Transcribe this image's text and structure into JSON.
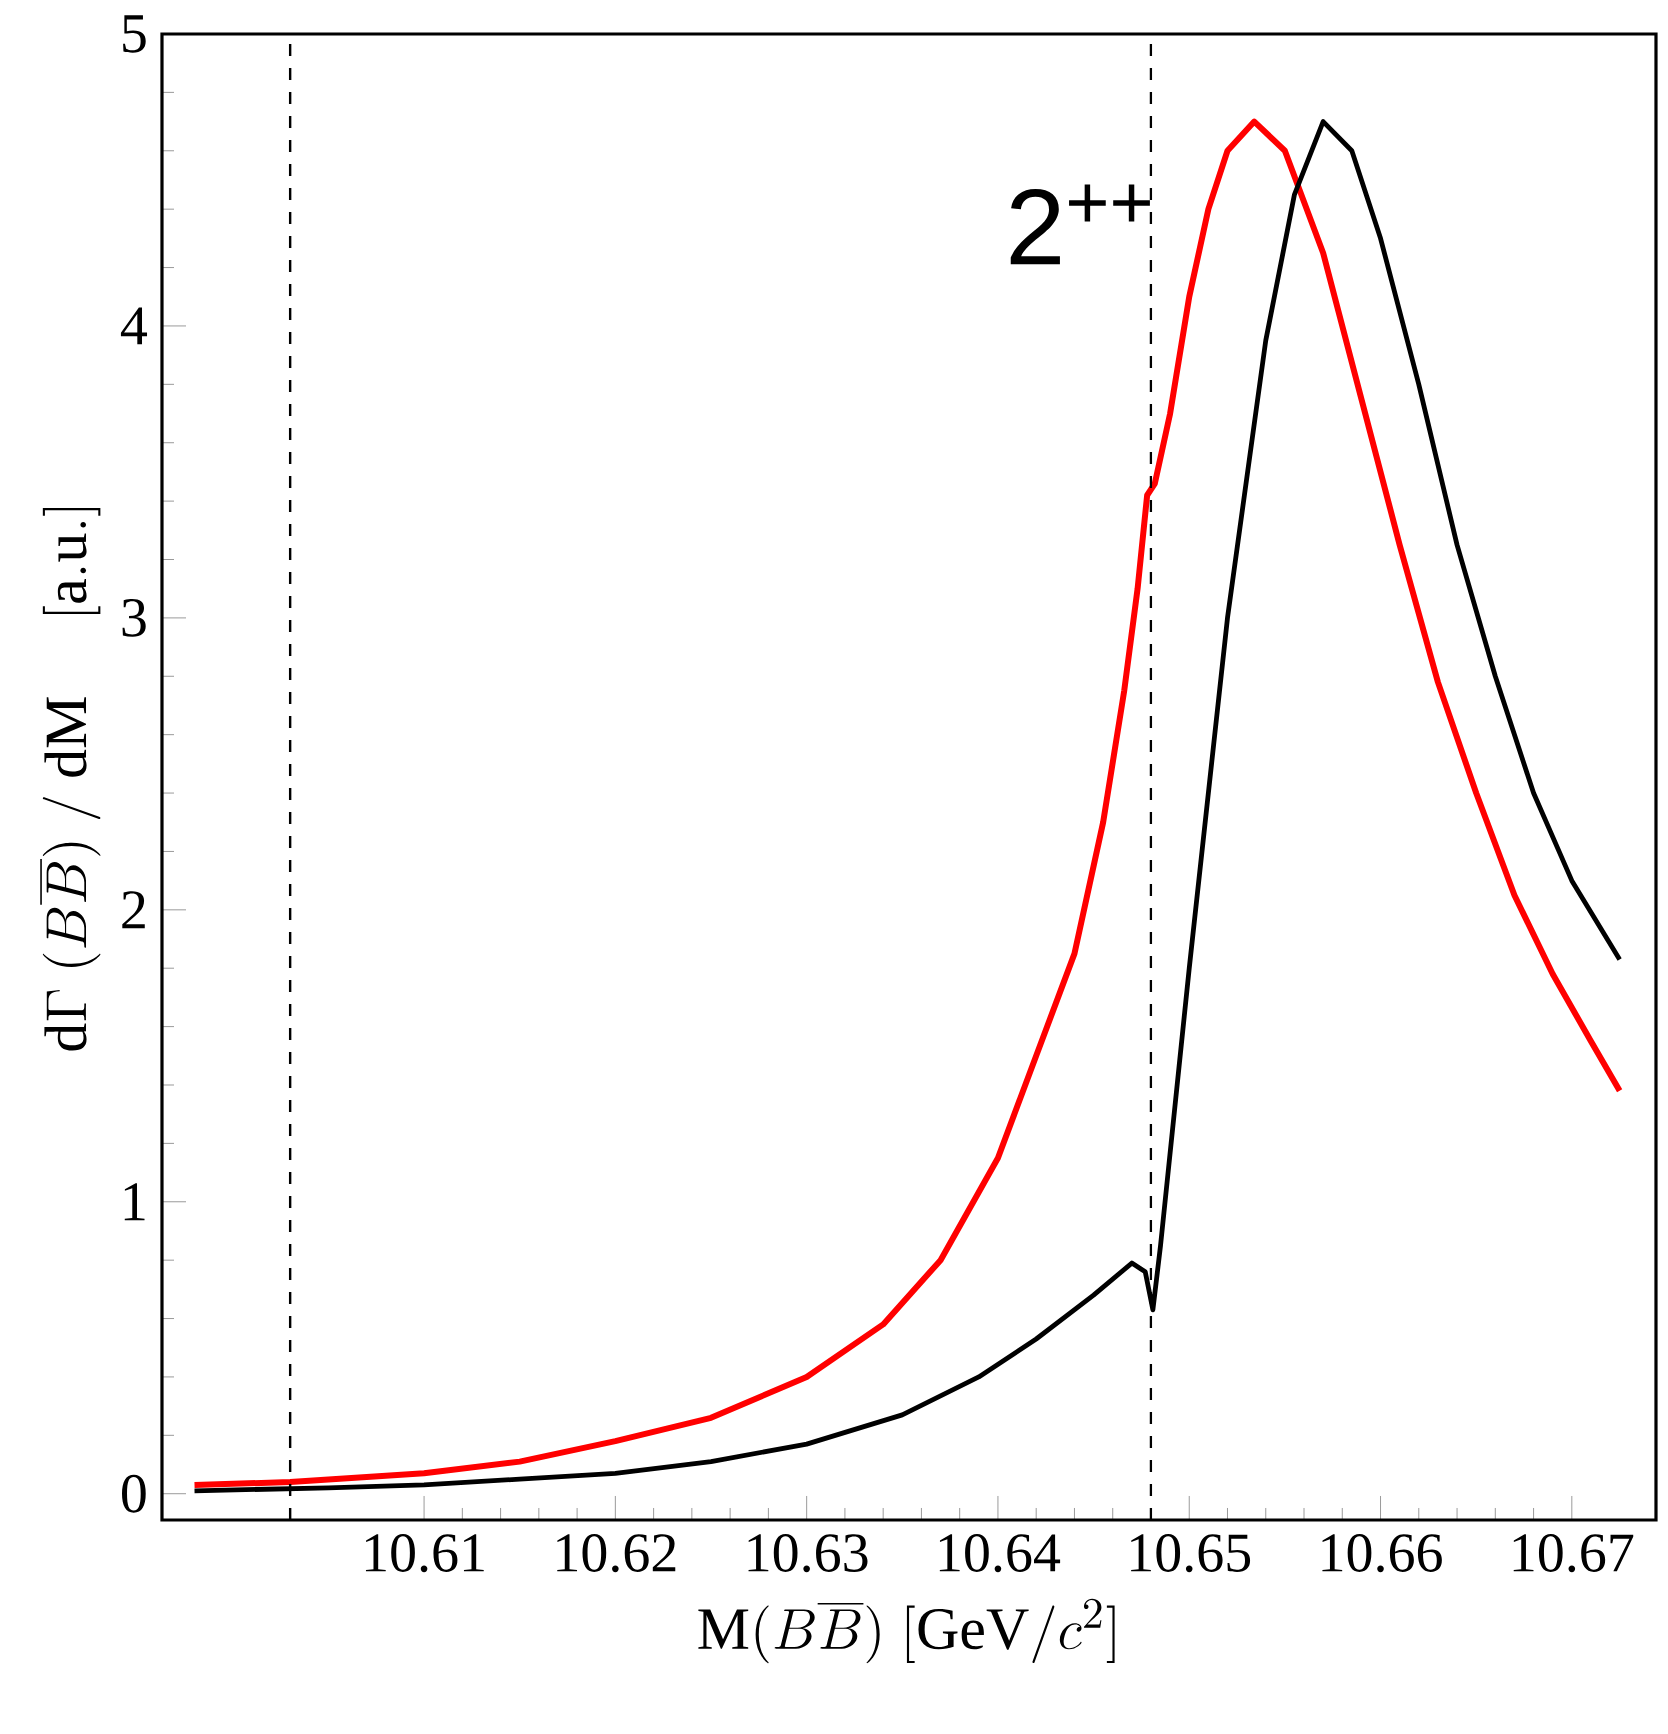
{
  "chart_data": {
    "type": "line",
    "xlabel": "\\mathrm{M}(B\\overline{B})\\ [\\mathrm{GeV}/c^2]",
    "ylabel": "\\mathrm{d}\\Gamma\\ (B\\overline{B})\\ /\\ \\mathrm{dM}\\quad\\ [\\mathrm{a.u.}]",
    "xlim": [
      10.5963,
      10.6744
    ],
    "ylim": [
      -0.09,
      5
    ],
    "xticks": [
      10.61,
      10.62,
      10.63,
      10.64,
      10.65,
      10.66,
      10.67
    ],
    "yticks": [
      0,
      1,
      2,
      3,
      4,
      5
    ],
    "marker": "none",
    "line_style": "solid",
    "annotations": [
      "2$^{++}$"
    ],
    "ref_lines": [
      {
        "axis": "x",
        "value": 10.603,
        "color": "#000000",
        "line_style": "dashed"
      },
      {
        "axis": "x",
        "value": 10.648,
        "color": "#000000",
        "line_style": "dashed"
      }
    ],
    "series": [
      {
        "color": "#ff0000",
        "x": [
          10.598,
          10.603,
          10.61,
          10.615,
          10.62,
          10.625,
          10.63,
          10.634,
          10.637,
          10.64,
          10.642,
          10.644,
          10.6455,
          10.6466,
          10.6473,
          10.6478,
          10.6482,
          10.649,
          10.65,
          10.651,
          10.652,
          10.6534,
          10.655,
          10.657,
          10.659,
          10.661,
          10.663,
          10.665,
          10.667,
          10.669,
          10.671,
          10.6725
        ],
        "values": [
          0.03,
          0.04,
          0.07,
          0.11,
          0.18,
          0.26,
          0.4,
          0.58,
          0.8,
          1.15,
          1.5,
          1.85,
          2.3,
          2.75,
          3.1,
          3.42,
          3.46,
          3.7,
          4.1,
          4.4,
          4.6,
          4.7,
          4.6,
          4.25,
          3.75,
          3.25,
          2.78,
          2.4,
          2.05,
          1.78,
          1.55,
          1.38
        ]
      },
      {
        "color": "#000000",
        "x": [
          10.598,
          10.605,
          10.61,
          10.615,
          10.62,
          10.625,
          10.63,
          10.635,
          10.639,
          10.642,
          10.645,
          10.647,
          10.6477,
          10.6481,
          10.6485,
          10.65,
          10.652,
          10.654,
          10.6555,
          10.657,
          10.6585,
          10.66,
          10.662,
          10.664,
          10.666,
          10.668,
          10.67,
          10.6725
        ],
        "values": [
          0.01,
          0.02,
          0.03,
          0.05,
          0.07,
          0.11,
          0.17,
          0.27,
          0.4,
          0.53,
          0.68,
          0.79,
          0.76,
          0.63,
          0.85,
          1.8,
          3.0,
          3.95,
          4.45,
          4.7,
          4.6,
          4.3,
          3.8,
          3.25,
          2.8,
          2.4,
          2.1,
          1.83
        ]
      }
    ]
  }
}
